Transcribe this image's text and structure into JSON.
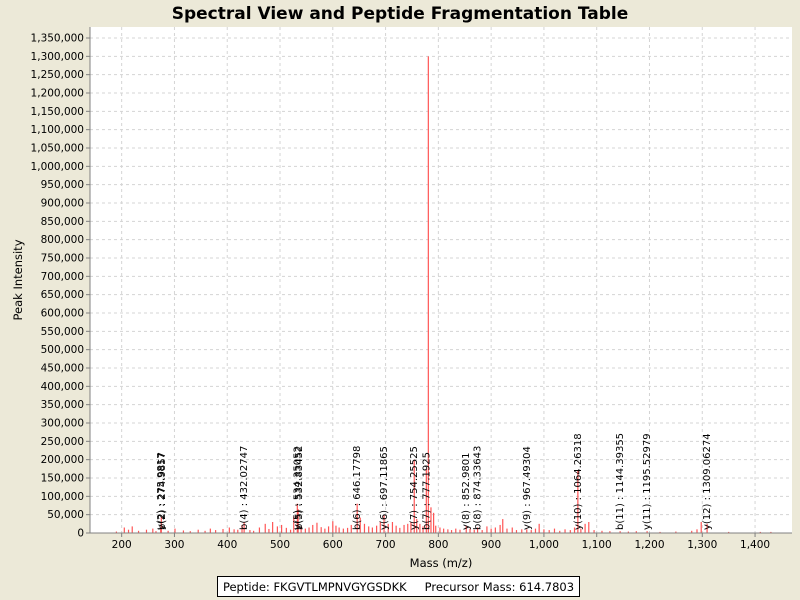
{
  "chart_data": {
    "type": "bar",
    "title": "Spectral View and Peptide Fragmentation Table",
    "xlabel": "Mass (m/z)",
    "ylabel": "Peak Intensity",
    "xlim": [
      140,
      1470
    ],
    "ylim": [
      0,
      1380000
    ],
    "grid": true,
    "color": "#ff5555",
    "x_ticks": [
      {
        "value": 200,
        "label": "200"
      },
      {
        "value": 300,
        "label": "300"
      },
      {
        "value": 400,
        "label": "400"
      },
      {
        "value": 500,
        "label": "500"
      },
      {
        "value": 600,
        "label": "600"
      },
      {
        "value": 700,
        "label": "700"
      },
      {
        "value": 800,
        "label": "800"
      },
      {
        "value": 900,
        "label": "900"
      },
      {
        "value": 1000,
        "label": "1,000"
      },
      {
        "value": 1100,
        "label": "1,100"
      },
      {
        "value": 1200,
        "label": "1,200"
      },
      {
        "value": 1300,
        "label": "1,300"
      },
      {
        "value": 1400,
        "label": "1,400"
      }
    ],
    "y_ticks": [
      {
        "value": 0,
        "label": "0"
      },
      {
        "value": 50000,
        "label": "50,000"
      },
      {
        "value": 100000,
        "label": "100,000"
      },
      {
        "value": 150000,
        "label": "150,000"
      },
      {
        "value": 200000,
        "label": "200,000"
      },
      {
        "value": 250000,
        "label": "250,000"
      },
      {
        "value": 300000,
        "label": "300,000"
      },
      {
        "value": 350000,
        "label": "350,000"
      },
      {
        "value": 400000,
        "label": "400,000"
      },
      {
        "value": 450000,
        "label": "450,000"
      },
      {
        "value": 500000,
        "label": "500,000"
      },
      {
        "value": 550000,
        "label": "550,000"
      },
      {
        "value": 600000,
        "label": "600,000"
      },
      {
        "value": 650000,
        "label": "650,000"
      },
      {
        "value": 700000,
        "label": "700,000"
      },
      {
        "value": 750000,
        "label": "750,000"
      },
      {
        "value": 800000,
        "label": "800,000"
      },
      {
        "value": 850000,
        "label": "850,000"
      },
      {
        "value": 900000,
        "label": "900,000"
      },
      {
        "value": 950000,
        "label": "950,000"
      },
      {
        "value": 1000000,
        "label": "1,000,000"
      },
      {
        "value": 1050000,
        "label": "1,050,000"
      },
      {
        "value": 1100000,
        "label": "1,100,000"
      },
      {
        "value": 1150000,
        "label": "1,150,000"
      },
      {
        "value": 1200000,
        "label": "1,200,000"
      },
      {
        "value": 1250000,
        "label": "1,250,000"
      },
      {
        "value": 1300000,
        "label": "1,300,000"
      },
      {
        "value": 1350000,
        "label": "1,350,000"
      }
    ],
    "peaks": [
      [
        190,
        4000
      ],
      [
        205,
        15000
      ],
      [
        213,
        9000
      ],
      [
        220,
        18000
      ],
      [
        232,
        6000
      ],
      [
        247,
        9000
      ],
      [
        259,
        12000
      ],
      [
        265,
        5000
      ],
      [
        274,
        12000
      ],
      [
        275.1,
        45000
      ],
      [
        288,
        6000
      ],
      [
        301,
        12000
      ],
      [
        317,
        7000
      ],
      [
        330,
        5000
      ],
      [
        345,
        9000
      ],
      [
        358,
        6000
      ],
      [
        368,
        12000
      ],
      [
        378,
        8000
      ],
      [
        392,
        11000
      ],
      [
        404,
        15000
      ],
      [
        413,
        10000
      ],
      [
        420,
        9000
      ],
      [
        428,
        22000
      ],
      [
        432,
        30000
      ],
      [
        443,
        8000
      ],
      [
        450,
        6000
      ],
      [
        461,
        15000
      ],
      [
        472,
        25000
      ],
      [
        479,
        11000
      ],
      [
        486,
        30000
      ],
      [
        495,
        18000
      ],
      [
        503,
        22000
      ],
      [
        512,
        14000
      ],
      [
        520,
        9000
      ],
      [
        526,
        45000
      ],
      [
        532.8,
        80000
      ],
      [
        534.3,
        65000
      ],
      [
        540,
        18000
      ],
      [
        548,
        12000
      ],
      [
        555,
        15000
      ],
      [
        562,
        22000
      ],
      [
        570,
        28000
      ],
      [
        578,
        16000
      ],
      [
        585,
        12000
      ],
      [
        592,
        18000
      ],
      [
        600,
        32000
      ],
      [
        606,
        20000
      ],
      [
        612,
        15000
      ],
      [
        620,
        12000
      ],
      [
        628,
        14000
      ],
      [
        635,
        22000
      ],
      [
        646.2,
        80000
      ],
      [
        652,
        42000
      ],
      [
        660,
        25000
      ],
      [
        668,
        18000
      ],
      [
        675,
        15000
      ],
      [
        683,
        20000
      ],
      [
        690,
        30000
      ],
      [
        697.1,
        48000
      ],
      [
        705,
        25000
      ],
      [
        713,
        30000
      ],
      [
        720,
        20000
      ],
      [
        727,
        14000
      ],
      [
        735,
        22000
      ],
      [
        742,
        25000
      ],
      [
        748,
        30000
      ],
      [
        754.3,
        200000
      ],
      [
        759,
        38000
      ],
      [
        765,
        25000
      ],
      [
        771,
        18000
      ],
      [
        777.2,
        175000
      ],
      [
        781,
        1300000
      ],
      [
        786,
        70000
      ],
      [
        791,
        55000
      ],
      [
        795,
        20000
      ],
      [
        803,
        15000
      ],
      [
        810,
        12000
      ],
      [
        818,
        10000
      ],
      [
        825,
        8000
      ],
      [
        833,
        12000
      ],
      [
        841,
        9000
      ],
      [
        852.8,
        20000
      ],
      [
        860,
        12000
      ],
      [
        868,
        9000
      ],
      [
        874.3,
        15000
      ],
      [
        883,
        8000
      ],
      [
        892,
        18000
      ],
      [
        900,
        12000
      ],
      [
        908,
        15000
      ],
      [
        917,
        22000
      ],
      [
        922,
        38000
      ],
      [
        930,
        12000
      ],
      [
        940,
        15000
      ],
      [
        948,
        8000
      ],
      [
        958,
        10000
      ],
      [
        967.5,
        10000
      ],
      [
        976,
        8000
      ],
      [
        984,
        12000
      ],
      [
        991,
        25000
      ],
      [
        1000,
        10000
      ],
      [
        1010,
        8000
      ],
      [
        1020,
        12000
      ],
      [
        1030,
        6000
      ],
      [
        1040,
        10000
      ],
      [
        1050,
        8000
      ],
      [
        1058,
        15000
      ],
      [
        1064.3,
        170000
      ],
      [
        1070,
        12000
      ],
      [
        1078,
        25000
      ],
      [
        1085,
        30000
      ],
      [
        1095,
        8000
      ],
      [
        1110,
        6000
      ],
      [
        1125,
        5000
      ],
      [
        1144.4,
        5000
      ],
      [
        1160,
        4000
      ],
      [
        1175,
        5000
      ],
      [
        1195.5,
        5000
      ],
      [
        1220,
        3000
      ],
      [
        1250,
        4000
      ],
      [
        1280,
        6000
      ],
      [
        1290,
        10000
      ],
      [
        1298,
        30000
      ],
      [
        1309.1,
        25000
      ],
      [
        1350,
        3000
      ],
      [
        1410,
        3000
      ],
      [
        1430,
        3000
      ]
    ],
    "annotations": [
      {
        "x": 274.5,
        "label": "y(2) : 275.9817"
      },
      {
        "x": 276.8,
        "label": "b(2) : 274.9857"
      },
      {
        "x": 432.0,
        "label": "b(4) : 432.02747"
      },
      {
        "x": 532.8,
        "label": "y(5) : 534.35052"
      },
      {
        "x": 535.6,
        "label": "b(5) : 532.83452"
      },
      {
        "x": 646.2,
        "label": "b(6) : 646.17798"
      },
      {
        "x": 697.1,
        "label": "y(6) : 697.11865"
      },
      {
        "x": 754.3,
        "label": "y(7) : 754.25525"
      },
      {
        "x": 777.2,
        "label": "b(7) : 777.1925"
      },
      {
        "x": 852.8,
        "label": "y(8) : 852.9801"
      },
      {
        "x": 874.3,
        "label": "b(8) : 874.33643"
      },
      {
        "x": 967.5,
        "label": "y(9) : 967.49304"
      },
      {
        "x": 1064.3,
        "label": "y(10) : 1064.26318"
      },
      {
        "x": 1144.4,
        "label": "b(11) : 1144.39355"
      },
      {
        "x": 1195.5,
        "label": "y(11) : 1195.52979"
      },
      {
        "x": 1309.1,
        "label": "y(12) : 1309.06274"
      }
    ]
  },
  "footer": {
    "peptide": "Peptide: FKGVTLMPNVGYGSDKK",
    "precursor": "Precursor Mass: 614.7803"
  }
}
